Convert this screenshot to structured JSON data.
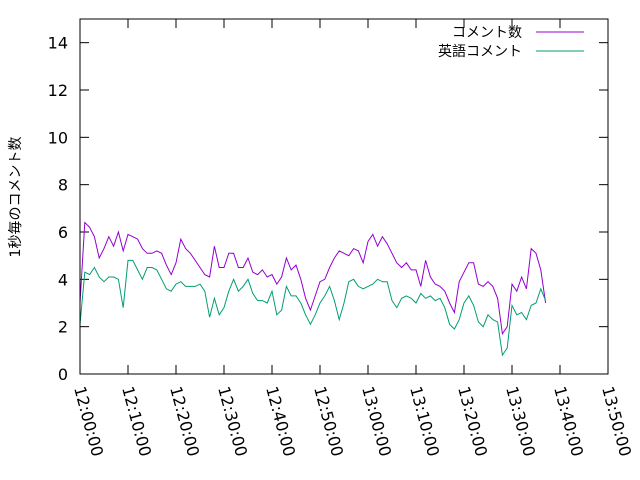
{
  "chart_data": {
    "type": "line",
    "title": "",
    "xlabel": "",
    "ylabel": "1秒毎のコメント数",
    "ylim": [
      0,
      15
    ],
    "yticks": [
      0,
      2,
      4,
      6,
      8,
      10,
      12,
      14
    ],
    "xlim": [
      "12:00:00",
      "13:50:00"
    ],
    "xticks": [
      "12:00:00",
      "12:10:00",
      "12:20:00",
      "12:30:00",
      "12:40:00",
      "12:50:00",
      "13:00:00",
      "13:10:00",
      "13:20:00",
      "13:30:00",
      "13:40:00",
      "13:50:00"
    ],
    "grid": false,
    "legend_position": "top-right",
    "series": [
      {
        "name": "コメント数",
        "color": "#9400d3",
        "points": [
          [
            "12:00:00",
            3.0
          ],
          [
            "12:01:00",
            6.4
          ],
          [
            "12:02:00",
            6.2
          ],
          [
            "12:03:00",
            5.8
          ],
          [
            "12:04:00",
            4.9
          ],
          [
            "12:05:00",
            5.3
          ],
          [
            "12:06:00",
            5.8
          ],
          [
            "12:07:00",
            5.4
          ],
          [
            "12:08:00",
            6.0
          ],
          [
            "12:09:00",
            5.2
          ],
          [
            "12:10:00",
            5.9
          ],
          [
            "12:11:00",
            5.8
          ],
          [
            "12:12:00",
            5.7
          ],
          [
            "12:13:00",
            5.3
          ],
          [
            "12:14:00",
            5.1
          ],
          [
            "12:15:00",
            5.1
          ],
          [
            "12:16:00",
            5.2
          ],
          [
            "12:17:00",
            5.1
          ],
          [
            "12:18:00",
            4.6
          ],
          [
            "12:19:00",
            4.2
          ],
          [
            "12:20:00",
            4.7
          ],
          [
            "12:21:00",
            5.7
          ],
          [
            "12:22:00",
            5.3
          ],
          [
            "12:23:00",
            5.1
          ],
          [
            "12:24:00",
            4.8
          ],
          [
            "12:25:00",
            4.5
          ],
          [
            "12:26:00",
            4.2
          ],
          [
            "12:27:00",
            4.1
          ],
          [
            "12:28:00",
            5.4
          ],
          [
            "12:29:00",
            4.5
          ],
          [
            "12:30:00",
            4.5
          ],
          [
            "12:31:00",
            5.1
          ],
          [
            "12:32:00",
            5.1
          ],
          [
            "12:33:00",
            4.5
          ],
          [
            "12:34:00",
            4.5
          ],
          [
            "12:35:00",
            4.9
          ],
          [
            "12:36:00",
            4.3
          ],
          [
            "12:37:00",
            4.2
          ],
          [
            "12:38:00",
            4.4
          ],
          [
            "12:39:00",
            4.1
          ],
          [
            "12:40:00",
            4.2
          ],
          [
            "12:41:00",
            3.8
          ],
          [
            "12:42:00",
            4.1
          ],
          [
            "12:43:00",
            4.9
          ],
          [
            "12:44:00",
            4.4
          ],
          [
            "12:45:00",
            4.6
          ],
          [
            "12:46:00",
            4.0
          ],
          [
            "12:47:00",
            3.2
          ],
          [
            "12:48:00",
            2.7
          ],
          [
            "12:49:00",
            3.3
          ],
          [
            "12:50:00",
            3.9
          ],
          [
            "12:51:00",
            4.0
          ],
          [
            "12:52:00",
            4.5
          ],
          [
            "12:53:00",
            4.9
          ],
          [
            "12:54:00",
            5.2
          ],
          [
            "12:55:00",
            5.1
          ],
          [
            "12:56:00",
            5.0
          ],
          [
            "12:57:00",
            5.3
          ],
          [
            "12:58:00",
            5.2
          ],
          [
            "12:59:00",
            4.7
          ],
          [
            "13:00:00",
            5.6
          ],
          [
            "13:01:00",
            5.9
          ],
          [
            "13:02:00",
            5.4
          ],
          [
            "13:03:00",
            5.8
          ],
          [
            "13:04:00",
            5.5
          ],
          [
            "13:05:00",
            5.1
          ],
          [
            "13:06:00",
            4.7
          ],
          [
            "13:07:00",
            4.5
          ],
          [
            "13:08:00",
            4.7
          ],
          [
            "13:09:00",
            4.4
          ],
          [
            "13:10:00",
            4.4
          ],
          [
            "13:11:00",
            3.7
          ],
          [
            "13:12:00",
            4.8
          ],
          [
            "13:13:00",
            4.1
          ],
          [
            "13:14:00",
            3.8
          ],
          [
            "13:15:00",
            3.7
          ],
          [
            "13:16:00",
            3.5
          ],
          [
            "13:17:00",
            3.0
          ],
          [
            "13:18:00",
            2.6
          ],
          [
            "13:19:00",
            3.9
          ],
          [
            "13:20:00",
            4.3
          ],
          [
            "13:21:00",
            4.7
          ],
          [
            "13:22:00",
            4.7
          ],
          [
            "13:23:00",
            3.8
          ],
          [
            "13:24:00",
            3.7
          ],
          [
            "13:25:00",
            3.9
          ],
          [
            "13:26:00",
            3.7
          ],
          [
            "13:27:00",
            3.2
          ],
          [
            "13:28:00",
            1.7
          ],
          [
            "13:29:00",
            2.0
          ],
          [
            "13:30:00",
            3.8
          ],
          [
            "13:31:00",
            3.5
          ],
          [
            "13:32:00",
            4.1
          ],
          [
            "13:33:00",
            3.6
          ],
          [
            "13:34:00",
            5.3
          ],
          [
            "13:35:00",
            5.1
          ],
          [
            "13:36:00",
            4.4
          ],
          [
            "13:37:00",
            3.0
          ]
        ]
      },
      {
        "name": "英語コメント",
        "color": "#009e73",
        "points": [
          [
            "12:00:00",
            2.1
          ],
          [
            "12:01:00",
            4.3
          ],
          [
            "12:02:00",
            4.2
          ],
          [
            "12:03:00",
            4.5
          ],
          [
            "12:04:00",
            4.1
          ],
          [
            "12:05:00",
            3.9
          ],
          [
            "12:06:00",
            4.1
          ],
          [
            "12:07:00",
            4.1
          ],
          [
            "12:08:00",
            4.0
          ],
          [
            "12:09:00",
            2.8
          ],
          [
            "12:10:00",
            4.8
          ],
          [
            "12:11:00",
            4.8
          ],
          [
            "12:12:00",
            4.4
          ],
          [
            "12:13:00",
            4.0
          ],
          [
            "12:14:00",
            4.5
          ],
          [
            "12:15:00",
            4.5
          ],
          [
            "12:16:00",
            4.4
          ],
          [
            "12:17:00",
            4.0
          ],
          [
            "12:18:00",
            3.6
          ],
          [
            "12:19:00",
            3.5
          ],
          [
            "12:20:00",
            3.8
          ],
          [
            "12:21:00",
            3.9
          ],
          [
            "12:22:00",
            3.7
          ],
          [
            "12:23:00",
            3.7
          ],
          [
            "12:24:00",
            3.7
          ],
          [
            "12:25:00",
            3.8
          ],
          [
            "12:26:00",
            3.5
          ],
          [
            "12:27:00",
            2.4
          ],
          [
            "12:28:00",
            3.2
          ],
          [
            "12:29:00",
            2.5
          ],
          [
            "12:30:00",
            2.8
          ],
          [
            "12:31:00",
            3.5
          ],
          [
            "12:32:00",
            4.0
          ],
          [
            "12:33:00",
            3.5
          ],
          [
            "12:34:00",
            3.7
          ],
          [
            "12:35:00",
            4.0
          ],
          [
            "12:36:00",
            3.4
          ],
          [
            "12:37:00",
            3.1
          ],
          [
            "12:38:00",
            3.1
          ],
          [
            "12:39:00",
            3.0
          ],
          [
            "12:40:00",
            3.5
          ],
          [
            "12:41:00",
            2.5
          ],
          [
            "12:42:00",
            2.7
          ],
          [
            "12:43:00",
            3.7
          ],
          [
            "12:44:00",
            3.3
          ],
          [
            "12:45:00",
            3.3
          ],
          [
            "12:46:00",
            3.0
          ],
          [
            "12:47:00",
            2.5
          ],
          [
            "12:48:00",
            2.1
          ],
          [
            "12:49:00",
            2.5
          ],
          [
            "12:50:00",
            3.0
          ],
          [
            "12:51:00",
            3.3
          ],
          [
            "12:52:00",
            3.7
          ],
          [
            "12:53:00",
            3.1
          ],
          [
            "12:54:00",
            2.3
          ],
          [
            "12:55:00",
            3.0
          ],
          [
            "12:56:00",
            3.9
          ],
          [
            "12:57:00",
            4.0
          ],
          [
            "12:58:00",
            3.7
          ],
          [
            "12:59:00",
            3.6
          ],
          [
            "13:00:00",
            3.7
          ],
          [
            "13:01:00",
            3.8
          ],
          [
            "13:02:00",
            4.0
          ],
          [
            "13:03:00",
            3.9
          ],
          [
            "13:04:00",
            3.9
          ],
          [
            "13:05:00",
            3.1
          ],
          [
            "13:06:00",
            2.8
          ],
          [
            "13:07:00",
            3.2
          ],
          [
            "13:08:00",
            3.3
          ],
          [
            "13:09:00",
            3.2
          ],
          [
            "13:10:00",
            3.0
          ],
          [
            "13:11:00",
            3.4
          ],
          [
            "13:12:00",
            3.2
          ],
          [
            "13:13:00",
            3.3
          ],
          [
            "13:14:00",
            3.1
          ],
          [
            "13:15:00",
            3.2
          ],
          [
            "13:16:00",
            2.8
          ],
          [
            "13:17:00",
            2.1
          ],
          [
            "13:18:00",
            1.9
          ],
          [
            "13:19:00",
            2.3
          ],
          [
            "13:20:00",
            3.0
          ],
          [
            "13:21:00",
            3.3
          ],
          [
            "13:22:00",
            2.9
          ],
          [
            "13:23:00",
            2.2
          ],
          [
            "13:24:00",
            2.0
          ],
          [
            "13:25:00",
            2.5
          ],
          [
            "13:26:00",
            2.3
          ],
          [
            "13:27:00",
            2.2
          ],
          [
            "13:28:00",
            0.8
          ],
          [
            "13:29:00",
            1.1
          ],
          [
            "13:30:00",
            2.9
          ],
          [
            "13:31:00",
            2.5
          ],
          [
            "13:32:00",
            2.6
          ],
          [
            "13:33:00",
            2.3
          ],
          [
            "13:34:00",
            2.9
          ],
          [
            "13:35:00",
            3.0
          ],
          [
            "13:36:00",
            3.6
          ],
          [
            "13:37:00",
            3.1
          ]
        ]
      }
    ]
  }
}
